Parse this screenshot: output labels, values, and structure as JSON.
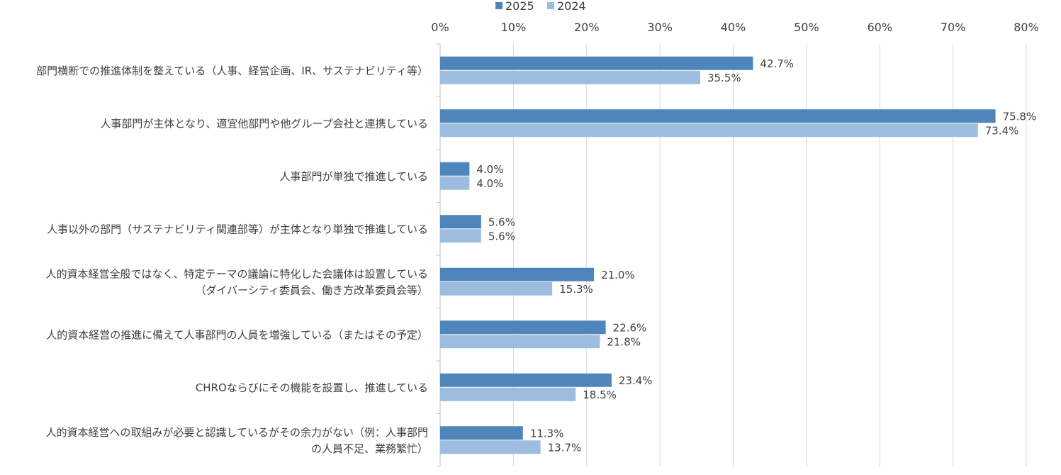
{
  "chart_data": {
    "type": "bar",
    "orientation": "horizontal",
    "categories": [
      [
        "部門横断での推進体制を整えている（人事、経営企画、IR、サステナビリティ等）"
      ],
      [
        "人事部門が主体となり、適宜他部門や他グループ会社と連携している"
      ],
      [
        "人事部門が単独で推進している"
      ],
      [
        "人事以外の部門（サステナビリティ関連部等）が主体となり単独で推進している"
      ],
      [
        "人的資本経営全般ではなく、特定テーマの議論に特化した会議体は設置している",
        "（ダイバーシティ委員会、働き方改革委員会等）"
      ],
      [
        "人的資本経営の推進に備えて人事部門の人員を増強している（またはその予定）"
      ],
      [
        "CHROならびにその機能を設置し、推進している"
      ],
      [
        "人的資本経営への取組みが必要と認識しているがその余力がない（例：人事部門",
        "の人員不足、業務繁忙）"
      ]
    ],
    "series": [
      {
        "name": "2025",
        "color": "#4e86bb",
        "values": [
          42.7,
          75.8,
          4.0,
          5.6,
          21.0,
          22.6,
          23.4,
          11.3
        ],
        "labels": [
          "42.7%",
          "75.8%",
          "4.0%",
          "5.6%",
          "21.0%",
          "22.6%",
          "23.4%",
          "11.3%"
        ]
      },
      {
        "name": "2024",
        "color": "#9dbde0",
        "values": [
          35.5,
          73.4,
          4.0,
          5.6,
          15.3,
          21.8,
          18.5,
          13.7
        ],
        "labels": [
          "35.5%",
          "73.4%",
          "4.0%",
          "5.6%",
          "15.3%",
          "21.8%",
          "18.5%",
          "13.7%"
        ]
      }
    ],
    "xlim": [
      0,
      80
    ],
    "ticks": [
      0,
      10,
      20,
      30,
      40,
      50,
      60,
      70,
      80
    ],
    "tick_labels": [
      "0%",
      "10%",
      "20%",
      "30%",
      "40%",
      "50%",
      "60%",
      "70%",
      "80%"
    ],
    "grid": true,
    "legend_position": "top-center"
  }
}
